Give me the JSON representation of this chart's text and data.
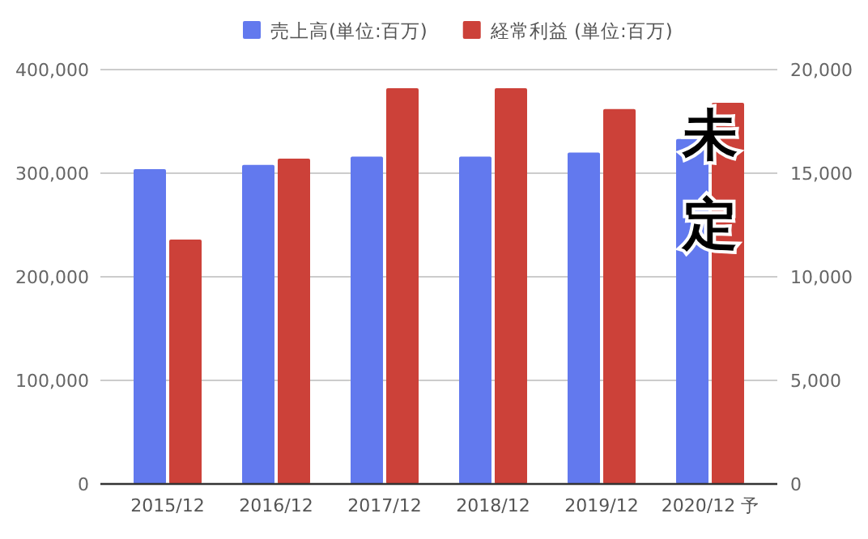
{
  "chart_data": {
    "type": "bar",
    "categories": [
      "2015/12",
      "2016/12",
      "2017/12",
      "2018/12",
      "2019/12",
      "2020/12 予"
    ],
    "series": [
      {
        "name": "売上高(単位:百万)",
        "color": "#6279ee",
        "values": [
          304000,
          308000,
          316000,
          316000,
          320000,
          333000
        ]
      },
      {
        "name": "経常利益 (単位:百万)",
        "color": "#cc4139",
        "axis": "y2",
        "values": [
          11800,
          15700,
          19100,
          19100,
          18100,
          18400
        ]
      }
    ],
    "ylim": [
      0,
      400000
    ],
    "yticks": [
      {
        "value": 0,
        "label": "0"
      },
      {
        "value": 100000,
        "label": "100,000"
      },
      {
        "value": 200000,
        "label": "200,000"
      },
      {
        "value": 300000,
        "label": "300,000"
      },
      {
        "value": 400000,
        "label": "400,000"
      }
    ],
    "y2lim": [
      0,
      20000
    ],
    "y2ticks": [
      {
        "value": 0,
        "label": "0"
      },
      {
        "value": 5000,
        "label": "5,000"
      },
      {
        "value": 10000,
        "label": "10,000"
      },
      {
        "value": 15000,
        "label": "15,000"
      },
      {
        "value": 20000,
        "label": "20,000"
      }
    ],
    "grid": "y",
    "legend": "top",
    "annotations": [
      "未定"
    ]
  }
}
